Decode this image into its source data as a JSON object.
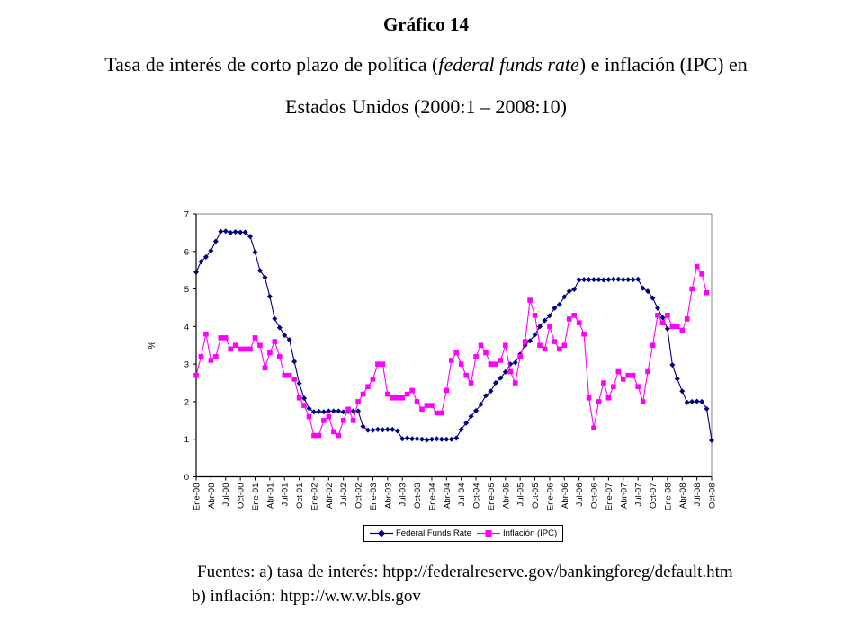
{
  "header": {
    "figure_label": "Gráfico 14",
    "title_before_italic": "Tasa de interés de corto plazo de política (",
    "title_italic": "federal funds rate",
    "title_after_italic": ") e inflación (IPC) en",
    "title_line2": "Estados Unidos (2000:1 – 2008:10)"
  },
  "chart_data": {
    "type": "line",
    "title": "",
    "xlabel": "",
    "ylabel": "%",
    "ylim": [
      0,
      7
    ],
    "yticks": [
      0,
      1,
      2,
      3,
      4,
      5,
      6,
      7
    ],
    "grid": "plot-border-only",
    "legend_position": "bottom",
    "axis_color": "#000000",
    "plot_border_color": "#808080",
    "months_per_tick": 3,
    "x_tick_labels": [
      "Ene-00",
      "Abr-00",
      "Jul-00",
      "Oct-00",
      "Ene-01",
      "Abr-01",
      "Jul-01",
      "Oct-01",
      "Ene-02",
      "Abr-02",
      "Jul-02",
      "Oct-02",
      "Ene-03",
      "Abr-03",
      "Jul-03",
      "Oct-03",
      "Ene-04",
      "Abr-04",
      "Jul-04",
      "Oct-04",
      "Ene-05",
      "Abr-05",
      "Jul-05",
      "Oct-05",
      "Ene-06",
      "Abr-06",
      "Jul-06",
      "Oct-06",
      "Ene-07",
      "Abr-07",
      "Jul-07",
      "Oct-07",
      "Ene-08",
      "Abr-08",
      "Jul-08",
      "Oct-08"
    ],
    "series": [
      {
        "name": "Federal Funds Rate",
        "color": "#000080",
        "marker": "diamond",
        "values": [
          5.45,
          5.73,
          5.85,
          6.02,
          6.27,
          6.53,
          6.54,
          6.5,
          6.52,
          6.51,
          6.51,
          6.4,
          5.98,
          5.49,
          5.31,
          4.8,
          4.21,
          3.97,
          3.77,
          3.65,
          3.07,
          2.49,
          2.09,
          1.82,
          1.73,
          1.74,
          1.73,
          1.75,
          1.75,
          1.75,
          1.73,
          1.74,
          1.75,
          1.75,
          1.34,
          1.24,
          1.24,
          1.26,
          1.25,
          1.26,
          1.26,
          1.22,
          1.01,
          1.03,
          1.01,
          1.01,
          1.0,
          0.98,
          1.0,
          1.01,
          1.0,
          1.0,
          1.0,
          1.03,
          1.26,
          1.43,
          1.61,
          1.76,
          1.93,
          2.16,
          2.28,
          2.5,
          2.63,
          2.79,
          3.0,
          3.04,
          3.26,
          3.5,
          3.62,
          3.78,
          4.0,
          4.16,
          4.29,
          4.49,
          4.59,
          4.79,
          4.94,
          4.99,
          5.24,
          5.25,
          5.25,
          5.25,
          5.25,
          5.24,
          5.25,
          5.26,
          5.26,
          5.25,
          5.25,
          5.25,
          5.26,
          5.02,
          4.94,
          4.76,
          4.49,
          4.24,
          3.94,
          2.98,
          2.61,
          2.28,
          1.98,
          2.0,
          2.01,
          2.0,
          1.81,
          0.97
        ]
      },
      {
        "name": "Inflación (IPC)",
        "color": "#FF00FF",
        "marker": "square",
        "values": [
          2.7,
          3.2,
          3.8,
          3.1,
          3.2,
          3.7,
          3.7,
          3.4,
          3.5,
          3.4,
          3.4,
          3.4,
          3.7,
          3.5,
          2.9,
          3.3,
          3.6,
          3.2,
          2.7,
          2.7,
          2.6,
          2.1,
          1.9,
          1.6,
          1.1,
          1.1,
          1.5,
          1.6,
          1.2,
          1.1,
          1.5,
          1.8,
          1.5,
          2.0,
          2.2,
          2.4,
          2.6,
          3.0,
          3.0,
          2.2,
          2.1,
          2.1,
          2.1,
          2.2,
          2.3,
          2.0,
          1.8,
          1.9,
          1.9,
          1.7,
          1.7,
          2.3,
          3.1,
          3.3,
          3.0,
          2.7,
          2.5,
          3.2,
          3.5,
          3.3,
          3.0,
          3.0,
          3.1,
          3.5,
          2.8,
          2.5,
          3.2,
          3.6,
          4.7,
          4.3,
          3.5,
          3.4,
          4.0,
          3.6,
          3.4,
          3.5,
          4.2,
          4.3,
          4.1,
          3.8,
          2.1,
          1.3,
          2.0,
          2.5,
          2.1,
          2.4,
          2.8,
          2.6,
          2.7,
          2.7,
          2.4,
          2.0,
          2.8,
          3.5,
          4.3,
          4.1,
          4.3,
          4.0,
          4.0,
          3.9,
          4.2,
          5.0,
          5.6,
          5.4,
          4.9
        ]
      }
    ]
  },
  "footer": {
    "line1": "Fuentes: a) tasa de interés: htpp://federalreserve.gov/bankingforeg/default.htm",
    "line2": "b) inflación: htpp://w.w.w.bls.gov"
  }
}
